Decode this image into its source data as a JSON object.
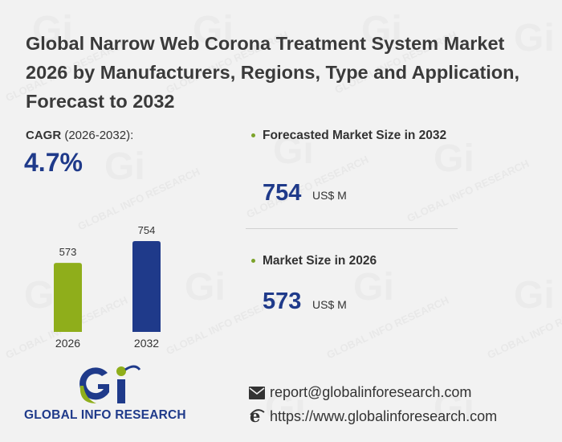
{
  "title": "Global Narrow Web Corona Treatment System Market 2026 by Manufacturers, Regions, Type and Application, Forecast to 2032",
  "cagr": {
    "label_bold": "CAGR",
    "label_period": "(2026-2032):",
    "value": "4.7%"
  },
  "kpis": [
    {
      "label": "Forecasted Market Size in 2032",
      "value": "754",
      "unit": "US$ M"
    },
    {
      "label": "Market Size in 2026",
      "value": "573",
      "unit": "US$ M"
    }
  ],
  "chart_data": {
    "type": "bar",
    "categories": [
      "2026",
      "2032"
    ],
    "values": [
      573,
      754
    ],
    "data_labels": [
      "573",
      "754"
    ],
    "colors": [
      "#8fae1b",
      "#1f3a8a"
    ],
    "title": "",
    "xlabel": "",
    "ylabel": "",
    "ylim": [
      0,
      780
    ],
    "grid": false,
    "legend": "none"
  },
  "logo": {
    "text": "GLOBAL INFO RESEARCH",
    "mark": "Gi"
  },
  "contact": {
    "email": "report@globalinforesearch.com",
    "website": "https://www.globalinforesearch.com"
  },
  "watermark": "GLOBAL INFO RESEARCH",
  "colors": {
    "accent_blue": "#1f3a8a",
    "accent_green": "#8fae1b",
    "bullet": "#7ca32a"
  }
}
